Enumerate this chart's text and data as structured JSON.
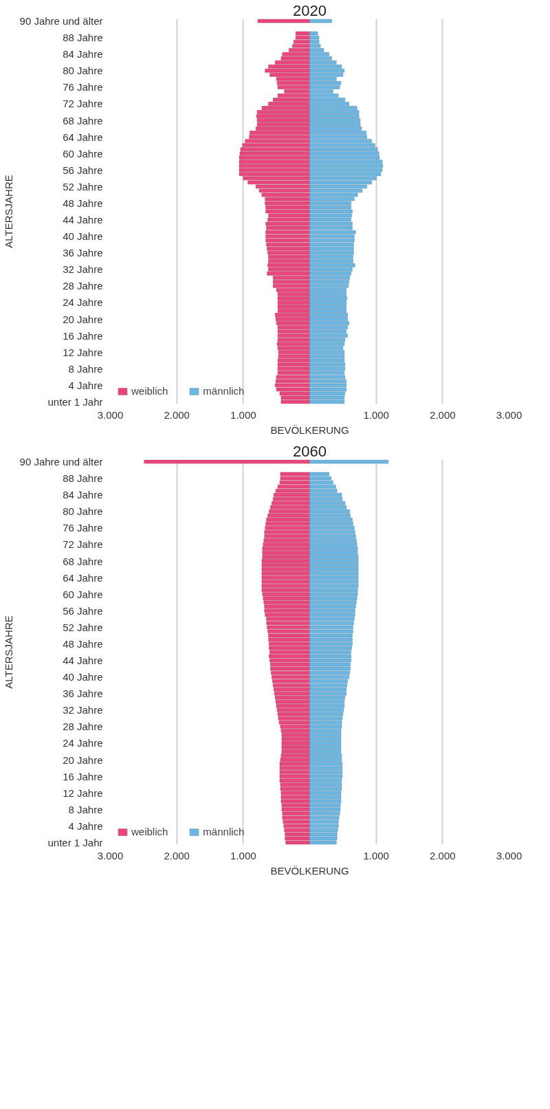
{
  "chart_data": [
    {
      "type": "bar",
      "orientation": "horizontal",
      "title": "2020",
      "xlabel": "BEVÖLKERUNG",
      "ylabel": "ALTERSJAHRE",
      "categories": [
        "90 Jahre und älter",
        null,
        null,
        null,
        "88 Jahre",
        null,
        null,
        null,
        "84 Jahre",
        null,
        null,
        null,
        "80 Jahre",
        null,
        null,
        null,
        "76 Jahre",
        null,
        null,
        null,
        "72 Jahre",
        null,
        null,
        null,
        "68 Jahre",
        null,
        null,
        null,
        "64 Jahre",
        null,
        null,
        null,
        "60 Jahre",
        null,
        null,
        null,
        "56 Jahre",
        null,
        null,
        null,
        "52 Jahre",
        null,
        null,
        null,
        "48 Jahre",
        null,
        null,
        null,
        "44 Jahre",
        null,
        null,
        null,
        "40 Jahre",
        null,
        null,
        null,
        "36 Jahre",
        null,
        null,
        null,
        "32 Jahre",
        null,
        null,
        null,
        "28 Jahre",
        null,
        null,
        null,
        "24 Jahre",
        null,
        null,
        null,
        "20 Jahre",
        null,
        null,
        null,
        "16 Jahre",
        null,
        null,
        null,
        "12 Jahre",
        null,
        null,
        null,
        "8 Jahre",
        null,
        null,
        null,
        "4 Jahre",
        null,
        null,
        null,
        "unter 1 Jahr"
      ],
      "series": [
        {
          "name": "weiblich",
          "color": "#e8467c",
          "values": [
            -780,
            null,
            null,
            -210,
            -210,
            -240,
            -260,
            -310,
            -410,
            -430,
            -520,
            -620,
            -670,
            -600,
            -500,
            -490,
            -480,
            -380,
            -480,
            -550,
            -620,
            -720,
            -790,
            -800,
            -790,
            -790,
            -810,
            -900,
            -910,
            -970,
            -1010,
            -1040,
            -1050,
            -1060,
            -1060,
            -1060,
            -1060,
            -1060,
            -1000,
            -930,
            -810,
            -760,
            -720,
            -670,
            -670,
            -660,
            -660,
            -620,
            -630,
            -660,
            -650,
            -660,
            -660,
            -660,
            -650,
            -640,
            -630,
            -620,
            -620,
            -630,
            -620,
            -640,
            -550,
            -550,
            -550,
            -500,
            -480,
            -480,
            -480,
            -480,
            -480,
            -520,
            -510,
            -500,
            -480,
            -480,
            -480,
            -480,
            -490,
            -480,
            -470,
            -470,
            -480,
            -480,
            -480,
            -480,
            -500,
            -510,
            -520,
            -500,
            -450,
            -430,
            -430
          ]
        },
        {
          "name": "männlich",
          "color": "#6db6e2",
          "values": [
            330,
            null,
            null,
            120,
            140,
            140,
            160,
            210,
            290,
            330,
            400,
            480,
            520,
            500,
            400,
            470,
            450,
            350,
            430,
            530,
            590,
            710,
            740,
            740,
            760,
            760,
            780,
            850,
            860,
            930,
            980,
            1020,
            1040,
            1050,
            1090,
            1100,
            1090,
            1070,
            1000,
            930,
            860,
            790,
            720,
            670,
            620,
            620,
            640,
            630,
            620,
            640,
            640,
            690,
            670,
            670,
            660,
            660,
            660,
            650,
            650,
            680,
            640,
            620,
            600,
            590,
            580,
            550,
            550,
            560,
            550,
            550,
            550,
            570,
            570,
            590,
            570,
            550,
            570,
            530,
            520,
            500,
            520,
            520,
            520,
            530,
            530,
            520,
            530,
            550,
            550,
            550,
            530,
            520,
            520
          ]
        }
      ],
      "xlim": [
        -3000,
        3000
      ],
      "xticks": [
        {
          "value": -3000,
          "label": "3.000"
        },
        {
          "value": -2000,
          "label": "2.000"
        },
        {
          "value": -1000,
          "label": "1.000"
        },
        {
          "value": 1000,
          "label": "1.000"
        },
        {
          "value": 2000,
          "label": "2.000"
        },
        {
          "value": 3000,
          "label": "3.000"
        }
      ],
      "grid": "x",
      "legend": "bottom left",
      "stacked": true
    },
    {
      "type": "bar",
      "orientation": "horizontal",
      "title": "2060",
      "xlabel": "BEVÖLKERUNG",
      "ylabel": "ALTERSJAHRE",
      "categories": [
        "90 Jahre und älter",
        null,
        null,
        null,
        "88 Jahre",
        null,
        null,
        null,
        "84 Jahre",
        null,
        null,
        null,
        "80 Jahre",
        null,
        null,
        null,
        "76 Jahre",
        null,
        null,
        null,
        "72 Jahre",
        null,
        null,
        null,
        "68 Jahre",
        null,
        null,
        null,
        "64 Jahre",
        null,
        null,
        null,
        "60 Jahre",
        null,
        null,
        null,
        "56 Jahre",
        null,
        null,
        null,
        "52 Jahre",
        null,
        null,
        null,
        "48 Jahre",
        null,
        null,
        null,
        "44 Jahre",
        null,
        null,
        null,
        "40 Jahre",
        null,
        null,
        null,
        "36 Jahre",
        null,
        null,
        null,
        "32 Jahre",
        null,
        null,
        null,
        "28 Jahre",
        null,
        null,
        null,
        "24 Jahre",
        null,
        null,
        null,
        "20 Jahre",
        null,
        null,
        null,
        "16 Jahre",
        null,
        null,
        null,
        "12 Jahre",
        null,
        null,
        null,
        "8 Jahre",
        null,
        null,
        null,
        "4 Jahre",
        null,
        null,
        null,
        "unter 1 Jahr"
      ],
      "series": [
        {
          "name": "weiblich",
          "color": "#e8467c",
          "values": [
            -2490,
            null,
            null,
            -440,
            -440,
            -450,
            -480,
            -510,
            -540,
            -550,
            -570,
            -590,
            -610,
            -630,
            -650,
            -660,
            -670,
            -680,
            -680,
            -690,
            -700,
            -710,
            -710,
            -710,
            -720,
            -720,
            -720,
            -720,
            -720,
            -720,
            -720,
            -720,
            -710,
            -700,
            -690,
            -680,
            -680,
            -670,
            -650,
            -650,
            -640,
            -630,
            -620,
            -620,
            -610,
            -610,
            -600,
            -610,
            -600,
            -590,
            -590,
            -580,
            -570,
            -560,
            -550,
            -540,
            -530,
            -520,
            -510,
            -500,
            -490,
            -480,
            -470,
            -460,
            -440,
            -430,
            -420,
            -420,
            -420,
            -420,
            -420,
            -430,
            -440,
            -450,
            -450,
            -450,
            -450,
            -450,
            -440,
            -440,
            -430,
            -430,
            -430,
            -420,
            -420,
            -410,
            -410,
            -400,
            -390,
            -380,
            -370,
            -370,
            -360
          ]
        },
        {
          "name": "männlich",
          "color": "#6db6e2",
          "values": [
            1180,
            null,
            null,
            290,
            320,
            350,
            390,
            410,
            480,
            490,
            530,
            550,
            600,
            610,
            640,
            650,
            670,
            680,
            690,
            700,
            710,
            720,
            720,
            730,
            730,
            730,
            730,
            730,
            730,
            730,
            730,
            720,
            720,
            710,
            700,
            690,
            680,
            680,
            670,
            660,
            650,
            650,
            640,
            640,
            640,
            630,
            620,
            620,
            620,
            610,
            610,
            600,
            590,
            570,
            560,
            550,
            550,
            530,
            520,
            520,
            510,
            500,
            490,
            480,
            480,
            470,
            470,
            470,
            470,
            470,
            470,
            480,
            480,
            490,
            490,
            490,
            490,
            480,
            480,
            480,
            470,
            470,
            470,
            460,
            460,
            450,
            440,
            430,
            430,
            420,
            410,
            410,
            400
          ]
        }
      ],
      "xlim": [
        -3000,
        3000
      ],
      "xticks": [
        {
          "value": -3000,
          "label": "3.000"
        },
        {
          "value": -2000,
          "label": "2.000"
        },
        {
          "value": -1000,
          "label": "1.000"
        },
        {
          "value": 1000,
          "label": "1.000"
        },
        {
          "value": 2000,
          "label": "2.000"
        },
        {
          "value": 3000,
          "label": "3.000"
        }
      ],
      "grid": "x",
      "legend": "bottom left",
      "stacked": true
    }
  ]
}
